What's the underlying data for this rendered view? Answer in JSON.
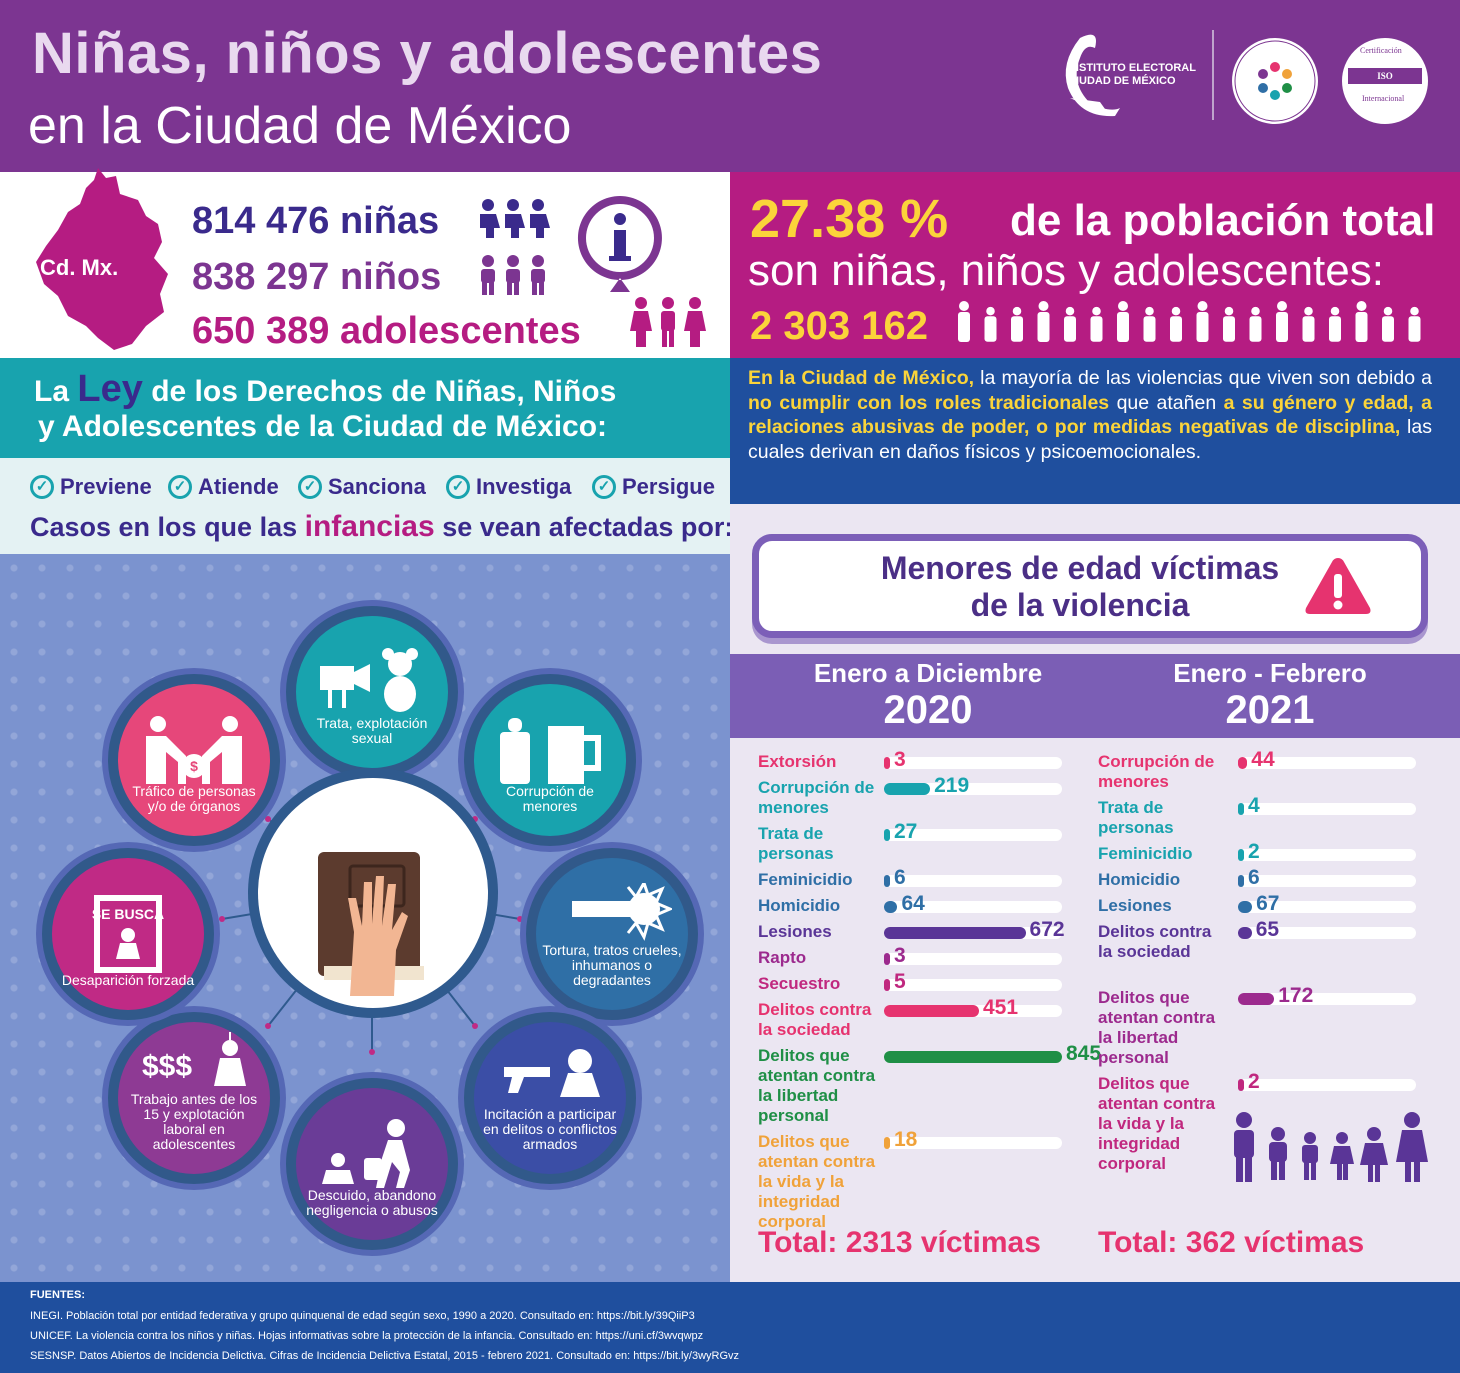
{
  "header": {
    "title_line1": "Niñas, niños y adolescentes",
    "title_line2": "en la Ciudad de México",
    "logo_iecm_line1": "INSTITUTO ELECTORAL",
    "logo_iecm_line2": "CIUDAD DE MÉXICO",
    "logo_iso_text": "ISO ELECTORAL",
    "logo_iso_top": "Certificación",
    "logo_iso_bottom": "Internacional"
  },
  "population": {
    "map_label": "Cd. Mx.",
    "girls_value": "814 476",
    "girls_label": "niñas",
    "boys_value": "838 297",
    "boys_label": "niños",
    "teens_value": "650 389",
    "teens_label": "adolescentes",
    "info_icon": "info-icon"
  },
  "percentage": {
    "value": "27.38 %",
    "text_line1": "de la población total",
    "text_line2": "son niñas, niños y adolescentes:",
    "total": "2 303 162"
  },
  "law": {
    "line1_pre": "La",
    "line1_ley": "Ley",
    "line1_post": "de los Derechos de Niñas, Niños",
    "line2": "y Adolescentes de la Ciudad de México:",
    "actions": [
      "Previene",
      "Atiende",
      "Sanciona",
      "Investiga",
      "Persigue"
    ],
    "cases_pre": "Casos en los que las",
    "cases_hl": "infancias",
    "cases_post": "se vean afectadas por:"
  },
  "violence_text": {
    "p1_hl": "En la Ciudad de México,",
    "p1": " la mayoría de las violencias que viven son debido a ",
    "p2_hl": "no cumplir con los roles tradicionales",
    "p2": " que atañen ",
    "p3_hl": "a su género y edad, a relaciones abusivas de poder, o por medidas negativas de disciplina,",
    "p3": " las cuales derivan en daños físicos y psicoemocionales."
  },
  "cases": [
    {
      "label": "Trata, explotación sexual",
      "color": "#18a3ae"
    },
    {
      "label": "Corrupción de menores",
      "color": "#18a3ae"
    },
    {
      "label": "Tortura, tratos crueles, inhumanos o degradantes",
      "color": "#2f6fa6"
    },
    {
      "label": "Incitación a participar en delitos o conflictos armados",
      "color": "#3b4ea6"
    },
    {
      "label": "Descuido, abandono negligencia o abusos",
      "color": "#6a3c97"
    },
    {
      "label": "Trabajo antes de los 15 y explotación laboral en adolescentes",
      "color": "#8e3a94"
    },
    {
      "label": "Desaparición forzada",
      "color": "#c02a85"
    },
    {
      "label": "Tráfico de personas y/o de órganos",
      "color": "#e6477a"
    }
  ],
  "victims": {
    "title_line1": "Menores de edad víctimas",
    "title_line2": "de la violencia",
    "period_2020_label": "Enero a Diciembre",
    "period_2020_year": "2020",
    "period_2021_label": "Enero - Febrero",
    "period_2021_year": "2021",
    "total_2020": "Total: 2313 víctimas",
    "total_2021": "Total: 362 víctimas"
  },
  "chart_data": [
    {
      "type": "bar",
      "title": "Enero a Diciembre 2020",
      "categories": [
        "Extorsión",
        "Corrupción de menores",
        "Trata de personas",
        "Feminicidio",
        "Homicidio",
        "Lesiones",
        "Rapto",
        "Secuestro",
        "Delitos contra la sociedad",
        "Delitos que atentan contra la libertad personal",
        "Delitos que atentan contra la vida y la integridad corporal"
      ],
      "values": [
        3,
        219,
        27,
        6,
        64,
        672,
        3,
        5,
        451,
        845,
        18
      ],
      "colors": [
        "#e6336f",
        "#18a3ae",
        "#18a3ae",
        "#2f6fa6",
        "#2f6fa6",
        "#5a3597",
        "#9c2a8e",
        "#c0287f",
        "#e6336f",
        "#1f8f46",
        "#f0a23a"
      ],
      "xlim": [
        0,
        845
      ]
    },
    {
      "type": "bar",
      "title": "Enero - Febrero 2021",
      "categories": [
        "Corrupción de menores",
        "Trata de personas",
        "Feminicidio",
        "Homicidio",
        "Lesiones",
        "Delitos contra la sociedad",
        "Delitos que atentan contra la libertad personal",
        "Delitos que atentan contra la vida y la integridad corporal"
      ],
      "values": [
        44,
        4,
        2,
        6,
        67,
        65,
        172,
        2
      ],
      "colors": [
        "#e6336f",
        "#18a3ae",
        "#18a3ae",
        "#2f6fa6",
        "#2f6fa6",
        "#5a3597",
        "#9c2a8e",
        "#c0287f"
      ],
      "xlim": [
        0,
        845
      ]
    }
  ],
  "footer": {
    "title": "FUENTES:",
    "sources": [
      "INEGI. Población total por entidad federativa y grupo quinquenal de edad según sexo, 1990 a 2020. Consultado en: https://bit.ly/39QiiP3",
      "UNICEF. La violencia contra los niños y niñas. Hojas informativas sobre la protección de la infancia. Consultado en: https://uni.cf/3wvqwpz",
      "SESNSP. Datos Abiertos de Incidencia Delictiva. Cifras de Incidencia Delictiva Estatal, 2015 - febrero 2021. Consultado en: https://bit.ly/3wyRGvz"
    ]
  }
}
